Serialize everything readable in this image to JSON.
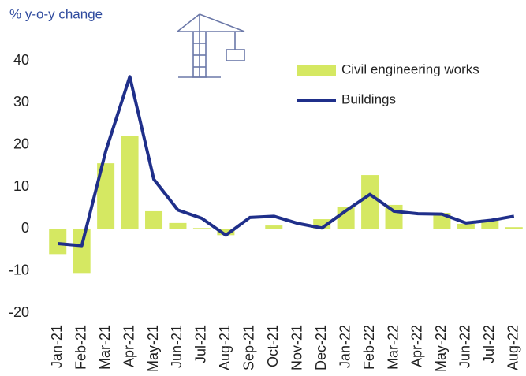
{
  "chart_data": {
    "type": "bar_line",
    "y_label": "% y-o-y change",
    "categories": [
      "Jan-21",
      "Feb-21",
      "Mar-21",
      "Apr-21",
      "May-21",
      "Jun-21",
      "Jul-21",
      "Aug-21",
      "Sep-21",
      "Oct-21",
      "Nov-21",
      "Dec-21",
      "Jan-22",
      "Feb-22",
      "Mar-22",
      "Apr-22",
      "May-22",
      "Jun-22",
      "Jul-22",
      "Aug-22"
    ],
    "series": [
      {
        "name": "Civil engineering works",
        "type": "bar",
        "color": "#d5e862",
        "values": [
          -6,
          -10.5,
          15.6,
          22,
          4.2,
          1.4,
          0.2,
          -1.5,
          0,
          0.8,
          0,
          2.3,
          5.3,
          12.8,
          5.7,
          0,
          3.8,
          1.2,
          2.2,
          0.4
        ]
      },
      {
        "name": "Buildings",
        "type": "line",
        "color": "#1f2f8a",
        "values": [
          -3.5,
          -4,
          18.5,
          36.2,
          11.8,
          4.5,
          2.5,
          -1.5,
          2.7,
          3.0,
          1.3,
          0.2,
          4.3,
          8.2,
          4.2,
          3.6,
          3.5,
          1.4,
          2.0,
          3.0
        ]
      }
    ],
    "ylim": [
      -20,
      40
    ],
    "yticks": [
      -20,
      -10,
      0,
      10,
      20,
      30,
      40
    ]
  }
}
